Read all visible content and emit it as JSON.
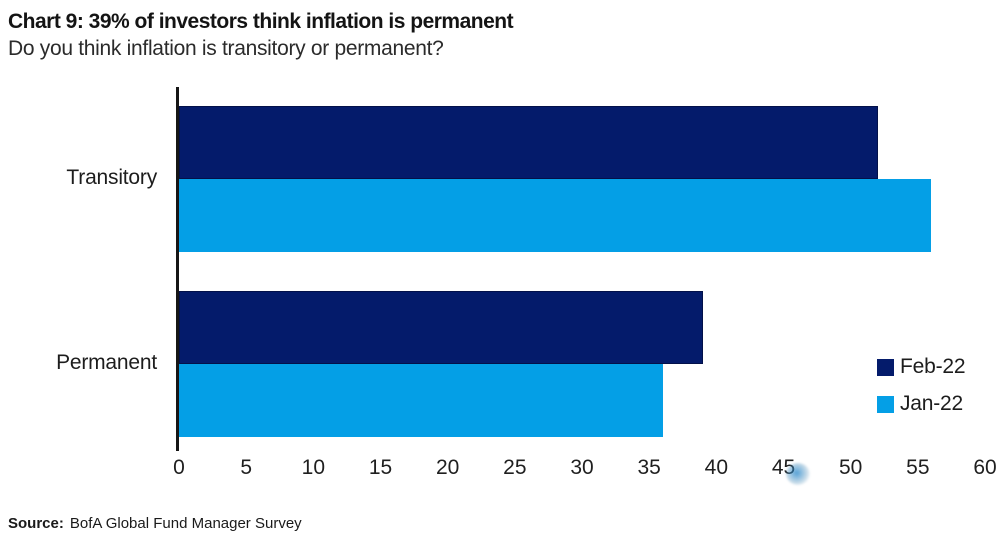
{
  "header": {
    "title": "Chart 9: 39% of investors think inflation is permanent",
    "subtitle": "Do you think inflation is transitory or permanent?"
  },
  "chart_data": {
    "type": "bar",
    "orientation": "horizontal",
    "title": "Chart 9: 39% of investors think inflation is permanent",
    "subtitle": "Do you think inflation is transitory or permanent?",
    "categories": [
      "Transitory",
      "Permanent"
    ],
    "series": [
      {
        "name": "Feb-22",
        "color": "#041b6b",
        "values": [
          52,
          39
        ]
      },
      {
        "name": "Jan-22",
        "color": "#049fe6",
        "values": [
          56,
          36
        ]
      }
    ],
    "xlim": [
      0,
      60
    ],
    "xticks": [
      0,
      5,
      10,
      15,
      20,
      25,
      30,
      35,
      40,
      45,
      50,
      55,
      60
    ],
    "xlabel": "",
    "ylabel": "",
    "grid": false,
    "legend_position": "right-middle"
  },
  "source": {
    "label": "Source:",
    "text": "BofA Global Fund Manager Survey"
  }
}
